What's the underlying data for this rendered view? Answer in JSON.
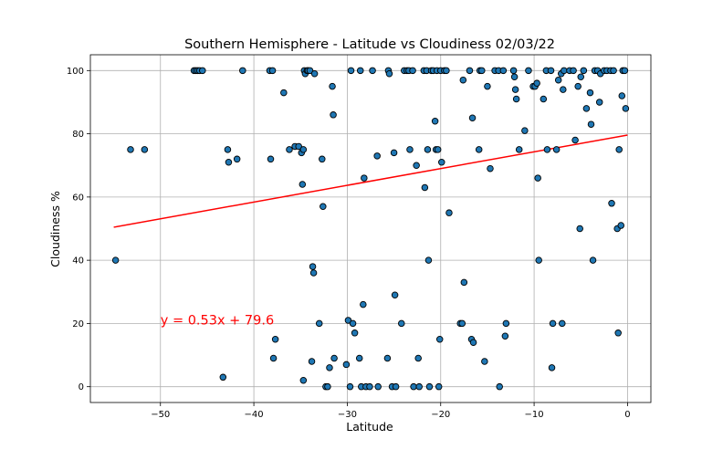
{
  "chart_data": {
    "type": "scatter",
    "title": "Southern Hemisphere - Latitude vs Cloudiness 02/03/22",
    "xlabel": "Latitude",
    "ylabel": "Cloudiness %",
    "xlim": [
      -57.5,
      2.5
    ],
    "ylim": [
      -5,
      105
    ],
    "xticks": [
      -50,
      -40,
      -30,
      -20,
      -10,
      0
    ],
    "yticks": [
      0,
      20,
      40,
      60,
      80,
      100
    ],
    "grid": true,
    "regression": {
      "slope": 0.53,
      "intercept": 79.6,
      "x_range": [
        -55,
        0
      ],
      "color": "#ff0000"
    },
    "annotation": {
      "text": "y = 0.53x + 79.6",
      "x": -50,
      "y": 20
    },
    "point_color": "#1f77b4",
    "points": [
      [
        -54.8,
        40
      ],
      [
        -53.2,
        75
      ],
      [
        -51.7,
        75
      ],
      [
        -46.4,
        100
      ],
      [
        -46.2,
        100
      ],
      [
        -46.0,
        100
      ],
      [
        -45.8,
        100
      ],
      [
        -45.5,
        100
      ],
      [
        -43.3,
        3
      ],
      [
        -42.8,
        75
      ],
      [
        -42.7,
        71
      ],
      [
        -41.8,
        72
      ],
      [
        -41.2,
        100
      ],
      [
        -38.3,
        100
      ],
      [
        -38.2,
        72
      ],
      [
        -38.0,
        100
      ],
      [
        -37.9,
        9
      ],
      [
        -37.7,
        15
      ],
      [
        -36.8,
        93
      ],
      [
        -36.2,
        75
      ],
      [
        -35.6,
        76
      ],
      [
        -35.2,
        76
      ],
      [
        -34.9,
        74
      ],
      [
        -34.8,
        64
      ],
      [
        -34.7,
        75
      ],
      [
        -34.6,
        100
      ],
      [
        -34.5,
        99
      ],
      [
        -34.3,
        100
      ],
      [
        -34.2,
        100
      ],
      [
        -34.0,
        100
      ],
      [
        -33.8,
        8
      ],
      [
        -33.7,
        38
      ],
      [
        -33.6,
        36
      ],
      [
        -33.5,
        99
      ],
      [
        -33.0,
        20
      ],
      [
        -32.7,
        72
      ],
      [
        -32.6,
        57
      ],
      [
        -32.3,
        0
      ],
      [
        -32.1,
        0
      ],
      [
        -31.9,
        6
      ],
      [
        -31.6,
        95
      ],
      [
        -31.5,
        86
      ],
      [
        -31.4,
        9
      ],
      [
        -34.7,
        2
      ],
      [
        -30.1,
        7
      ],
      [
        -29.9,
        21
      ],
      [
        -29.7,
        0
      ],
      [
        -29.6,
        100
      ],
      [
        -29.4,
        20
      ],
      [
        -29.2,
        17
      ],
      [
        -28.7,
        9
      ],
      [
        -28.6,
        100
      ],
      [
        -28.5,
        0
      ],
      [
        -28.3,
        26
      ],
      [
        -28.2,
        66
      ],
      [
        -28.0,
        0
      ],
      [
        -27.6,
        0
      ],
      [
        -27.3,
        100
      ],
      [
        -26.8,
        73
      ],
      [
        -26.7,
        0
      ],
      [
        -25.7,
        9
      ],
      [
        -25.6,
        100
      ],
      [
        -25.5,
        99
      ],
      [
        -25.2,
        0
      ],
      [
        -25.0,
        74
      ],
      [
        -24.9,
        29
      ],
      [
        -24.8,
        0
      ],
      [
        -24.2,
        20
      ],
      [
        -23.9,
        100
      ],
      [
        -23.6,
        100
      ],
      [
        -23.4,
        100
      ],
      [
        -23.3,
        75
      ],
      [
        -23.0,
        100
      ],
      [
        -22.9,
        0
      ],
      [
        -22.6,
        70
      ],
      [
        -22.4,
        9
      ],
      [
        -22.3,
        0
      ],
      [
        -21.8,
        100
      ],
      [
        -21.7,
        63
      ],
      [
        -21.5,
        100
      ],
      [
        -21.4,
        75
      ],
      [
        -21.3,
        40
      ],
      [
        -21.2,
        0
      ],
      [
        -21.0,
        100
      ],
      [
        -20.8,
        100
      ],
      [
        -20.6,
        84
      ],
      [
        -20.5,
        75
      ],
      [
        -20.4,
        100
      ],
      [
        -20.3,
        75
      ],
      [
        -20.2,
        0
      ],
      [
        -20.1,
        15
      ],
      [
        -20.0,
        100
      ],
      [
        -19.9,
        71
      ],
      [
        -19.6,
        100
      ],
      [
        -19.4,
        100
      ],
      [
        -19.1,
        55
      ],
      [
        -17.9,
        20
      ],
      [
        -17.7,
        20
      ],
      [
        -17.6,
        97
      ],
      [
        -17.5,
        33
      ],
      [
        -16.9,
        100
      ],
      [
        -16.7,
        15
      ],
      [
        -16.6,
        85
      ],
      [
        -16.5,
        14
      ],
      [
        -15.9,
        75
      ],
      [
        -15.8,
        100
      ],
      [
        -15.6,
        100
      ],
      [
        -15.3,
        8
      ],
      [
        -15.0,
        95
      ],
      [
        -14.7,
        69
      ],
      [
        -14.2,
        100
      ],
      [
        -13.8,
        100
      ],
      [
        -13.7,
        0
      ],
      [
        -13.3,
        100
      ],
      [
        -13.1,
        16
      ],
      [
        -13.0,
        20
      ],
      [
        -12.2,
        100
      ],
      [
        -12.1,
        98
      ],
      [
        -12.0,
        94
      ],
      [
        -11.9,
        91
      ],
      [
        -11.6,
        75
      ],
      [
        -11.0,
        81
      ],
      [
        -10.6,
        100
      ],
      [
        -10.1,
        95
      ],
      [
        -9.9,
        95
      ],
      [
        -9.7,
        96
      ],
      [
        -9.6,
        66
      ],
      [
        -9.5,
        40
      ],
      [
        -9.0,
        91
      ],
      [
        -8.7,
        100
      ],
      [
        -8.6,
        75
      ],
      [
        -8.2,
        100
      ],
      [
        -8.0,
        20
      ],
      [
        -8.1,
        6
      ],
      [
        -7.6,
        75
      ],
      [
        -7.4,
        97
      ],
      [
        -7.1,
        99
      ],
      [
        -7.0,
        20
      ],
      [
        -6.9,
        94
      ],
      [
        -6.8,
        100
      ],
      [
        -6.2,
        100
      ],
      [
        -5.8,
        100
      ],
      [
        -5.6,
        78
      ],
      [
        -5.3,
        95
      ],
      [
        -5.1,
        50
      ],
      [
        -5.0,
        98
      ],
      [
        -4.7,
        100
      ],
      [
        -4.4,
        88
      ],
      [
        -4.0,
        93
      ],
      [
        -3.9,
        83
      ],
      [
        -3.7,
        40
      ],
      [
        -3.5,
        100
      ],
      [
        -3.2,
        100
      ],
      [
        -3.0,
        90
      ],
      [
        -2.9,
        99
      ],
      [
        -2.5,
        100
      ],
      [
        -2.2,
        100
      ],
      [
        -1.8,
        100
      ],
      [
        -1.7,
        58
      ],
      [
        -1.5,
        100
      ],
      [
        -1.1,
        50
      ],
      [
        -1.0,
        17
      ],
      [
        -0.9,
        75
      ],
      [
        -0.7,
        51
      ],
      [
        -0.6,
        92
      ],
      [
        -0.5,
        100
      ],
      [
        -0.3,
        100
      ],
      [
        -0.2,
        88
      ]
    ]
  }
}
